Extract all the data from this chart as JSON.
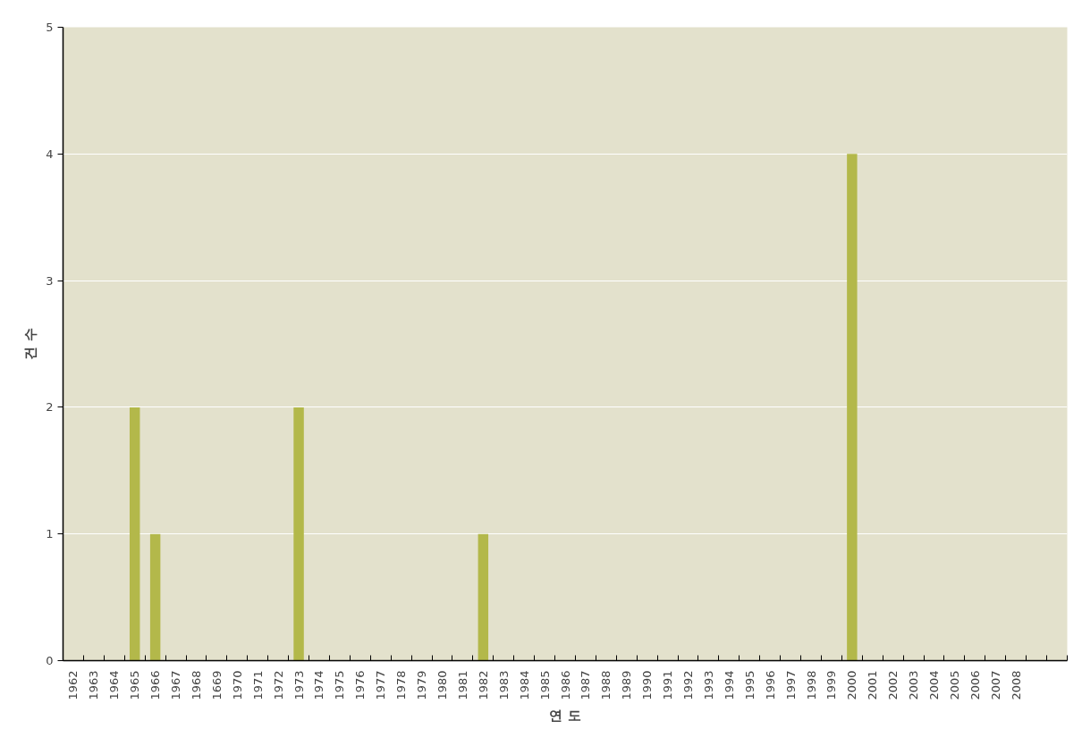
{
  "chart_data": {
    "type": "bar",
    "xlabel": "연 도",
    "ylabel": "건 수",
    "categories": [
      "1962",
      "1963",
      "1964",
      "1965",
      "1966",
      "1967",
      "1968",
      "1669",
      "1970",
      "1971",
      "1972",
      "1973",
      "1974",
      "1975",
      "1976",
      "1977",
      "1978",
      "1979",
      "1980",
      "1981",
      "1982",
      "1983",
      "1984",
      "1985",
      "1986",
      "1987",
      "1988",
      "1989",
      "1990",
      "1991",
      "1992",
      "1993",
      "1994",
      "1995",
      "1996",
      "1997",
      "1998",
      "1999",
      "2000",
      "2001",
      "2002",
      "2003",
      "2004",
      "2005",
      "2006",
      "2007",
      "2008",
      null,
      null
    ],
    "values": [
      0,
      0,
      0,
      2,
      1,
      0,
      0,
      0,
      0,
      0,
      0,
      2,
      0,
      0,
      0,
      0,
      0,
      0,
      0,
      0,
      1,
      0,
      0,
      0,
      0,
      0,
      0,
      0,
      0,
      0,
      0,
      0,
      0,
      0,
      0,
      0,
      0,
      0,
      4,
      0,
      0,
      0,
      0,
      0,
      0,
      0,
      0,
      0,
      0
    ],
    "color": "#b3b84a",
    "ylim": [
      0,
      5
    ],
    "yticks": [
      0,
      1,
      2,
      3,
      4,
      5
    ],
    "grid": "y"
  }
}
